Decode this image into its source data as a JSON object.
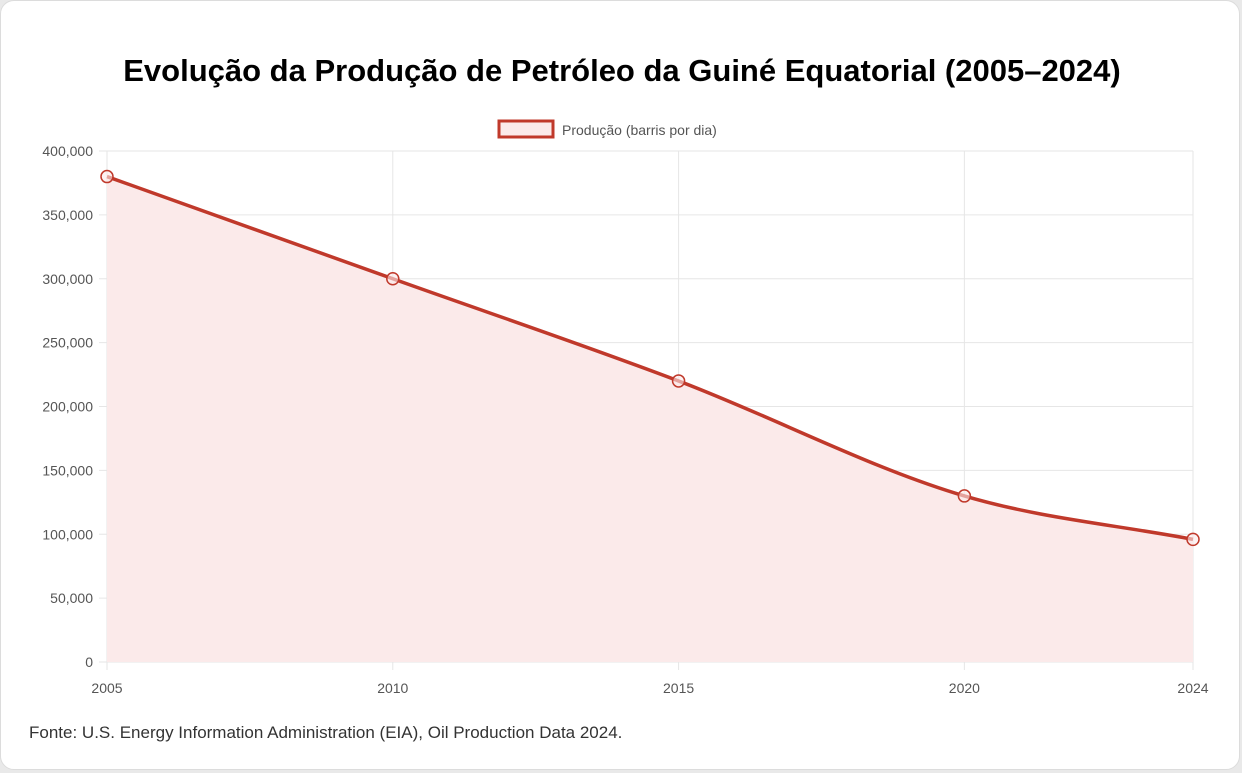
{
  "title": "Evolução da Produção de Petróleo da Guiné Equatorial (2005–2024)",
  "source": "Fonte: U.S. Energy Information Administration (EIA), Oil Production Data 2024.",
  "colors": {
    "line": "#c0392b",
    "fill": "#fbeaea",
    "grid": "#e6e6e6"
  },
  "chart_data": {
    "type": "area",
    "x": [
      2005,
      2010,
      2015,
      2020,
      2024
    ],
    "series": [
      {
        "name": "Produção (barris por dia)",
        "values": [
          380000,
          300000,
          220000,
          130000,
          96000
        ]
      }
    ],
    "xlabel": "",
    "ylabel": "",
    "ylim": [
      0,
      400000
    ],
    "xlim": [
      2005,
      2024
    ],
    "y_ticks": [
      0,
      50000,
      100000,
      150000,
      200000,
      250000,
      300000,
      350000,
      400000
    ],
    "y_tick_labels": [
      "0",
      "50,000",
      "100,000",
      "150,000",
      "200,000",
      "250,000",
      "300,000",
      "350,000",
      "400,000"
    ],
    "x_tick_labels": [
      "2005",
      "2010",
      "2015",
      "2020",
      "2024"
    ],
    "grid": true,
    "legend": "top-center"
  }
}
